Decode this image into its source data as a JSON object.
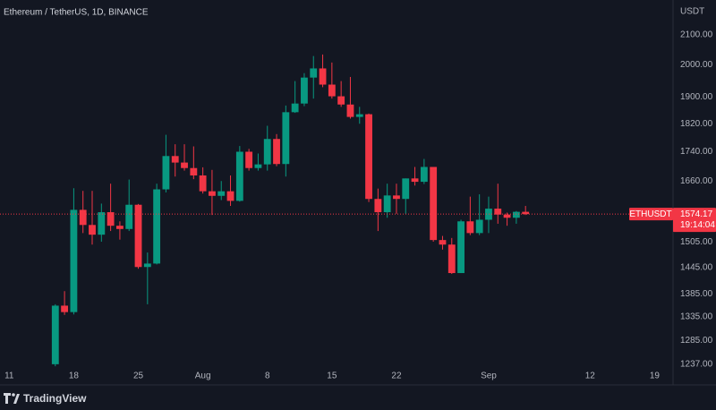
{
  "chart_data": {
    "type": "candlestick",
    "title": "Ethereum / TetherUS, 1D, BINANCE",
    "y_axis_label": "USDT",
    "log_scale": true,
    "grid": false,
    "up_color": "#089981",
    "down_color": "#f23645",
    "ylim": [
      1200,
      2220
    ],
    "yticks": [
      {
        "value": 2100,
        "label": "2100.00"
      },
      {
        "value": 2000,
        "label": "2000.00"
      },
      {
        "value": 1900,
        "label": "1900.00"
      },
      {
        "value": 1820,
        "label": "1820.00"
      },
      {
        "value": 1740,
        "label": "1740.00"
      },
      {
        "value": 1660,
        "label": "1660.00"
      },
      {
        "value": 1505,
        "label": "1505.00"
      },
      {
        "value": 1445,
        "label": "1445.00"
      },
      {
        "value": 1385,
        "label": "1385.00"
      },
      {
        "value": 1335,
        "label": "1335.00"
      },
      {
        "value": 1285,
        "label": "1285.00"
      },
      {
        "value": 1237,
        "label": "1237.00"
      }
    ],
    "xlim": [
      "Jul 10",
      "Sep 21"
    ],
    "xticks": [
      {
        "value": "Jul 11",
        "label": "11"
      },
      {
        "value": "Jul 18",
        "label": "18"
      },
      {
        "value": "Jul 25",
        "label": "25"
      },
      {
        "value": "Aug 1",
        "label": "Aug"
      },
      {
        "value": "Aug 8",
        "label": "8"
      },
      {
        "value": "Aug 15",
        "label": "15"
      },
      {
        "value": "Aug 22",
        "label": "22"
      },
      {
        "value": "Sep 1",
        "label": "Sep"
      },
      {
        "value": "Sep 12",
        "label": "12"
      },
      {
        "value": "Sep 19",
        "label": "19"
      }
    ],
    "x": [
      "Jul 16",
      "Jul 17",
      "Jul 18",
      "Jul 19",
      "Jul 20",
      "Jul 21",
      "Jul 22",
      "Jul 23",
      "Jul 24",
      "Jul 25",
      "Jul 26",
      "Jul 27",
      "Jul 28",
      "Jul 29",
      "Jul 30",
      "Jul 31",
      "Aug 1",
      "Aug 2",
      "Aug 3",
      "Aug 4",
      "Aug 5",
      "Aug 6",
      "Aug 7",
      "Aug 8",
      "Aug 9",
      "Aug 10",
      "Aug 11",
      "Aug 12",
      "Aug 13",
      "Aug 14",
      "Aug 15",
      "Aug 16",
      "Aug 17",
      "Aug 18",
      "Aug 19",
      "Aug 20",
      "Aug 21",
      "Aug 22",
      "Aug 23",
      "Aug 24",
      "Aug 25",
      "Aug 26",
      "Aug 27",
      "Aug 28",
      "Aug 29",
      "Aug 30",
      "Aug 31",
      "Sep 1",
      "Sep 2",
      "Sep 3",
      "Sep 4",
      "Sep 5"
    ],
    "open": [
      1237,
      1359,
      1345,
      1585,
      1547,
      1523,
      1579,
      1545,
      1537,
      1598,
      1446,
      1454,
      1638,
      1728,
      1710,
      1695,
      1675,
      1633,
      1621,
      1633,
      1608,
      1740,
      1695,
      1705,
      1776,
      1706,
      1854,
      1880,
      1960,
      1989,
      1938,
      1902,
      1877,
      1840,
      1848,
      1613,
      1579,
      1622,
      1613,
      1667,
      1658,
      1698,
      1510,
      1499,
      1432,
      1556,
      1527,
      1560,
      1588,
      1573,
      1565,
      1580
    ],
    "high": [
      1362,
      1391,
      1641,
      1634,
      1634,
      1601,
      1653,
      1556,
      1664,
      1600,
      1480,
      1653,
      1788,
      1761,
      1761,
      1755,
      1697,
      1690,
      1660,
      1675,
      1756,
      1748,
      1735,
      1814,
      1790,
      1874,
      1949,
      1974,
      2029,
      2034,
      2008,
      1949,
      1962,
      1870,
      1850,
      1640,
      1653,
      1653,
      1667,
      1698,
      1720,
      1698,
      1520,
      1515,
      1560,
      1619,
      1625,
      1619,
      1653,
      1578,
      1582,
      1595
    ],
    "low": [
      1233,
      1339,
      1340,
      1527,
      1499,
      1506,
      1532,
      1511,
      1532,
      1442,
      1362,
      1452,
      1630,
      1672,
      1688,
      1665,
      1627,
      1572,
      1610,
      1595,
      1606,
      1688,
      1688,
      1688,
      1700,
      1672,
      1852,
      1872,
      1895,
      1930,
      1895,
      1870,
      1835,
      1820,
      1605,
      1532,
      1565,
      1575,
      1575,
      1648,
      1652,
      1506,
      1487,
      1430,
      1432,
      1522,
      1522,
      1527,
      1550,
      1545,
      1550,
      1572
    ],
    "close": [
      1359,
      1345,
      1585,
      1547,
      1523,
      1579,
      1545,
      1537,
      1598,
      1446,
      1454,
      1638,
      1728,
      1710,
      1695,
      1675,
      1633,
      1621,
      1633,
      1608,
      1740,
      1695,
      1705,
      1776,
      1706,
      1854,
      1880,
      1960,
      1989,
      1938,
      1902,
      1877,
      1840,
      1848,
      1613,
      1579,
      1622,
      1613,
      1667,
      1658,
      1698,
      1510,
      1499,
      1432,
      1556,
      1527,
      1560,
      1588,
      1573,
      1565,
      1580,
      1574.17
    ],
    "price_symbol": "ETHUSDT",
    "countdown": "19:14:04"
  },
  "branding": "TradingView"
}
